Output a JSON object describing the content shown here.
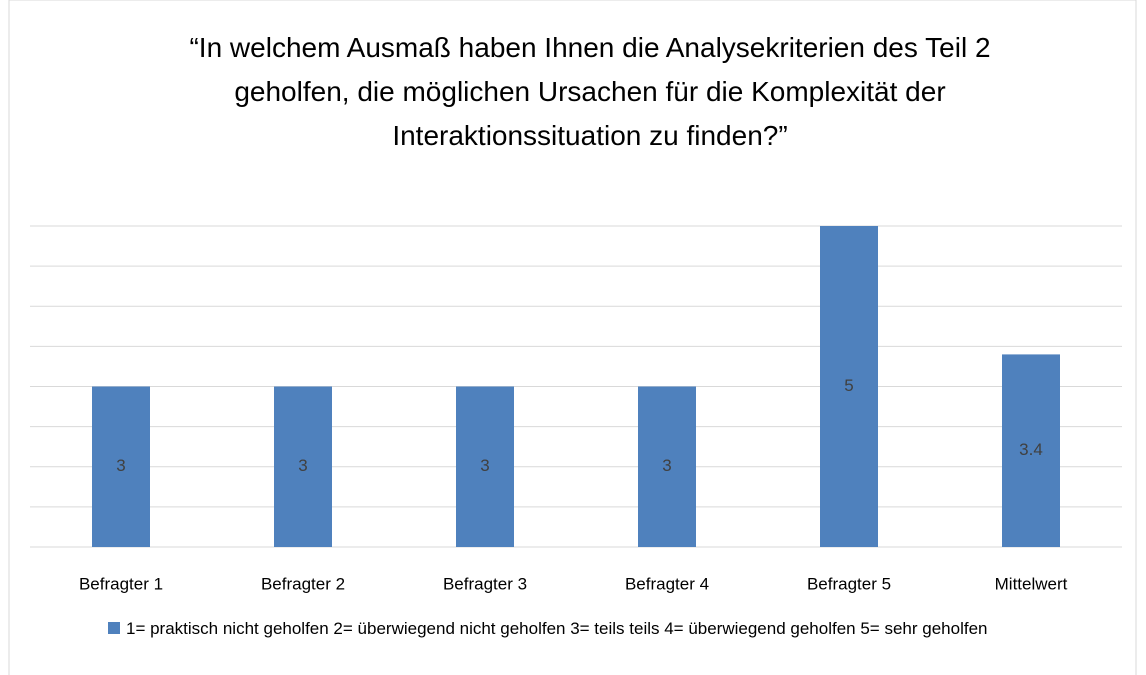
{
  "chart_data": {
    "type": "bar",
    "title": "“In welchem Ausmaß haben Ihnen die Analysekriterien des Teil 2 geholfen, die möglichen Ursachen für die Komplexität der Interaktionssituation zu finden?”",
    "categories": [
      "Befragter 1",
      "Befragter 2",
      "Befragter 3",
      "Befragter 4",
      "Befragter 5",
      "Mittelwert"
    ],
    "series": [
      {
        "name": "1= praktisch nicht geholfen 2= überwiegend nicht geholfen 3= teils teils 4= überwiegend geholfen 5= sehr geholfen",
        "color": "#4f81bd",
        "values": [
          3,
          3,
          3,
          3,
          5,
          3.4
        ]
      }
    ],
    "ylim": [
      1,
      5
    ],
    "yticks": [
      1,
      1.5,
      2,
      2.5,
      3,
      3.5,
      4,
      4.5,
      5
    ],
    "ytick_labels": false,
    "grid": true,
    "legend": "bottom"
  }
}
